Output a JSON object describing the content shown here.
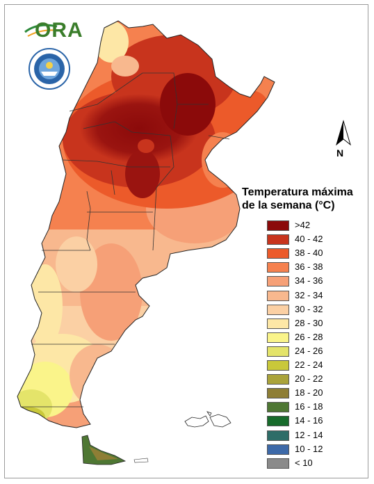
{
  "branding": {
    "org_logo_text": "ORA",
    "seal_name": "seal-icon"
  },
  "compass": {
    "label": "N"
  },
  "legend": {
    "title_line1": "Temperatura máxima",
    "title_line2": "de la semana (°C)",
    "items": [
      {
        "label": ">42",
        "color": "#8b0a0a"
      },
      {
        "label": "40 - 42",
        "color": "#c8341d"
      },
      {
        "label": "38 - 40",
        "color": "#ec5a2a"
      },
      {
        "label": "36 - 38",
        "color": "#f5814f"
      },
      {
        "label": "34 - 36",
        "color": "#f6a077"
      },
      {
        "label": "32 - 34",
        "color": "#f8b88e"
      },
      {
        "label": "30 - 32",
        "color": "#fbd0a4"
      },
      {
        "label": "28 - 30",
        "color": "#fde7a6"
      },
      {
        "label": "26 - 28",
        "color": "#faf48a"
      },
      {
        "label": "24 - 26",
        "color": "#e4e46a"
      },
      {
        "label": "22 - 24",
        "color": "#c9c83a"
      },
      {
        "label": "20 - 22",
        "color": "#aaa33a"
      },
      {
        "label": "18 - 20",
        "color": "#8e7e35"
      },
      {
        "label": "16 - 18",
        "color": "#4e7733"
      },
      {
        "label": "14 - 16",
        "color": "#176b2b"
      },
      {
        "label": "12 - 14",
        "color": "#2e6d68"
      },
      {
        "label": "10 - 12",
        "color": "#3d69a8"
      },
      {
        "label": "< 10",
        "color": "#8a8a8a"
      }
    ]
  }
}
